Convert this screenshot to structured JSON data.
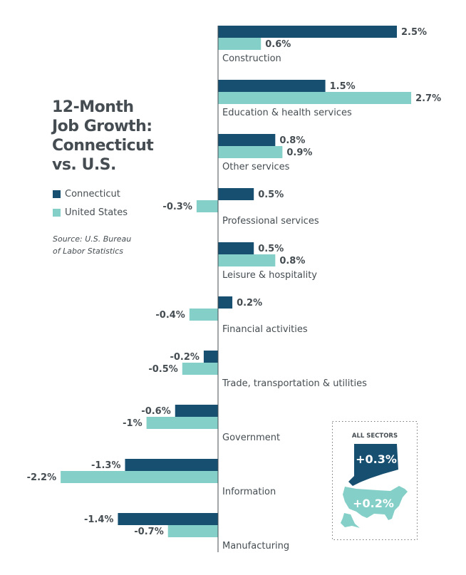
{
  "chart_data": {
    "type": "bar",
    "orientation": "horizontal",
    "title": "12-Month Job Growth: Connecticut vs. U.S.",
    "title_lines": [
      "12-Month",
      "Job Growth:",
      "Connecticut",
      "vs. U.S."
    ],
    "source_lines": [
      "Source: U.S. Bureau",
      "of Labor Statistics"
    ],
    "unit": "%",
    "categories": [
      "Construction",
      "Education & health services",
      "Other services",
      "Professional services",
      "Leisure & hospitality",
      "Financial activities",
      "Trade, transportation & utilities",
      "Government",
      "Information",
      "Manufacturing"
    ],
    "series": [
      {
        "name": "Connecticut",
        "color": "#174f71",
        "values": [
          2.5,
          1.5,
          0.8,
          0.5,
          0.5,
          0.2,
          -0.2,
          -0.6,
          -1.3,
          -1.4
        ],
        "labels": [
          "2.5%",
          "1.5%",
          "0.8%",
          "0.5%",
          "0.5%",
          "0.2%",
          "-0.2%",
          "-0.6%",
          "-1.3%",
          "-1.4%"
        ]
      },
      {
        "name": "United States",
        "color": "#84d0c8",
        "values": [
          0.6,
          2.7,
          0.9,
          -0.3,
          0.8,
          -0.4,
          -0.5,
          -1,
          -2.2,
          -0.7
        ],
        "labels": [
          "0.6%",
          "2.7%",
          "0.9%",
          "-0.3%",
          "0.8%",
          "-0.4%",
          "-0.5%",
          "-1%",
          "-2.2%",
          "-0.7%"
        ]
      }
    ],
    "legend_placement": "left",
    "grid": false,
    "inset": {
      "heading": "ALL SECTORS",
      "connecticut_label": "+0.3%",
      "us_label": "+0.2%"
    }
  }
}
